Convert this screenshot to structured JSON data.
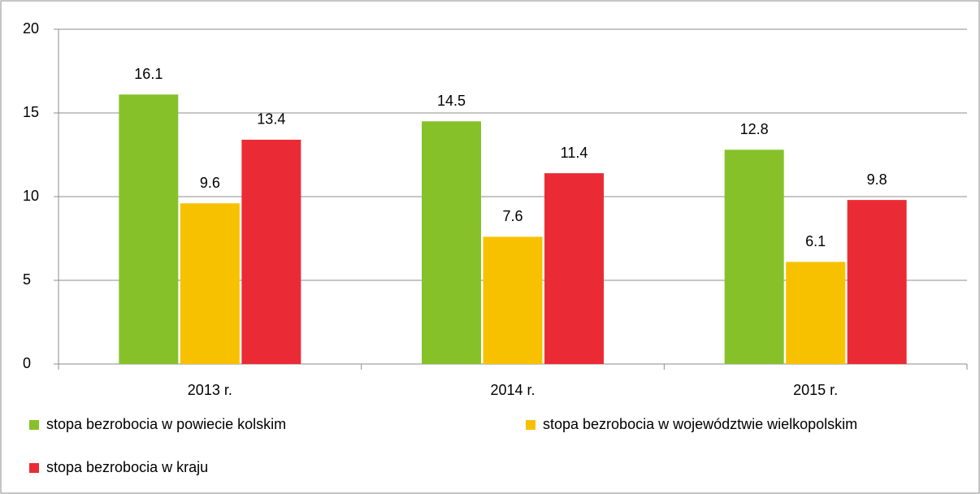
{
  "chart_data": {
    "type": "bar",
    "categories": [
      "2013 r.",
      "2014 r.",
      "2015 r."
    ],
    "series": [
      {
        "name": "stopa bezrobocia w powiecie kolskim",
        "color": "#86c12a",
        "values": [
          16.1,
          14.5,
          12.8
        ]
      },
      {
        "name": "stopa bezrobocia w województwie wielkopolskim",
        "color": "#f8c100",
        "values": [
          9.6,
          7.6,
          6.1
        ]
      },
      {
        "name": "stopa bezrobocia w kraju",
        "color": "#ea2b35",
        "values": [
          13.4,
          11.4,
          9.8
        ]
      }
    ],
    "ylim": [
      0,
      20
    ],
    "yticks": [
      0,
      5,
      10,
      15,
      20
    ],
    "grid": true,
    "legend": "bottom"
  }
}
